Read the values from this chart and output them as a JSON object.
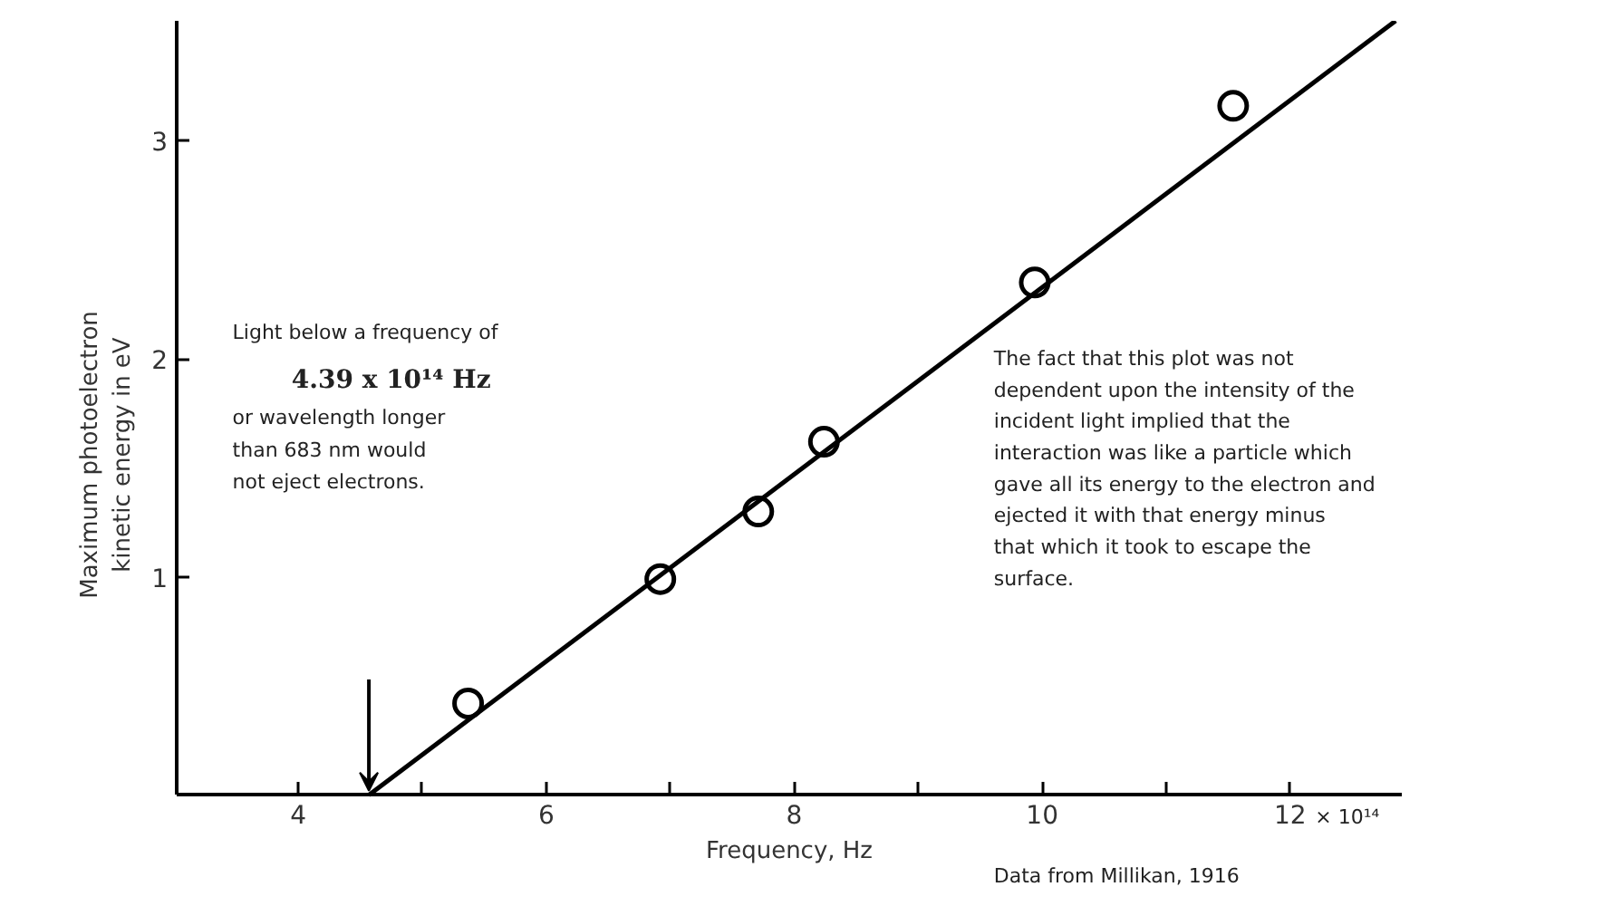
{
  "chart_data": {
    "type": "scatter",
    "xlabel": "Frequency, Hz",
    "ylabel": "Maximum photoelectron\nkinetic energy in eV",
    "series": [
      {
        "color": "#000000",
        "marker": "circle",
        "x": [
          5.37,
          6.92,
          7.71,
          8.24,
          9.94,
          11.54
        ],
        "values": [
          0.42,
          0.99,
          1.3,
          1.62,
          2.35,
          3.16
        ]
      },
      {
        "type": "line",
        "color": "#000000",
        "marker": "none",
        "line_style": "solid",
        "x": [
          4.57,
          12.85
        ],
        "values": [
          0,
          3.55
        ]
      }
    ],
    "xlim": [
      3.02,
      12.9
    ],
    "ylim": [
      0,
      3.55
    ],
    "xticks": [
      4,
      {
        "value": 5,
        "label": null
      },
      6,
      {
        "value": 7,
        "label": null
      },
      8,
      {
        "value": 9,
        "label": null
      },
      10,
      {
        "value": 11,
        "label": null
      },
      12
    ],
    "yticks": [
      1,
      2,
      3
    ],
    "grid": false,
    "annotations": [
      "Light below a frequency of",
      "4.39 x 10¹⁴ Hz",
      "or wavelength longer\nthan 683 nm would\nnot eject electrons.",
      "The fact that this plot was not\ndependent upon the intensity of the\nincident light implied that the\ninteraction was like a particle which\ngave all its energy to the electron and\nejected it with that energy minus\nthat which it took to escape the\nsurface.",
      "× 10¹⁴",
      "Data from Millikan, 1916"
    ]
  }
}
